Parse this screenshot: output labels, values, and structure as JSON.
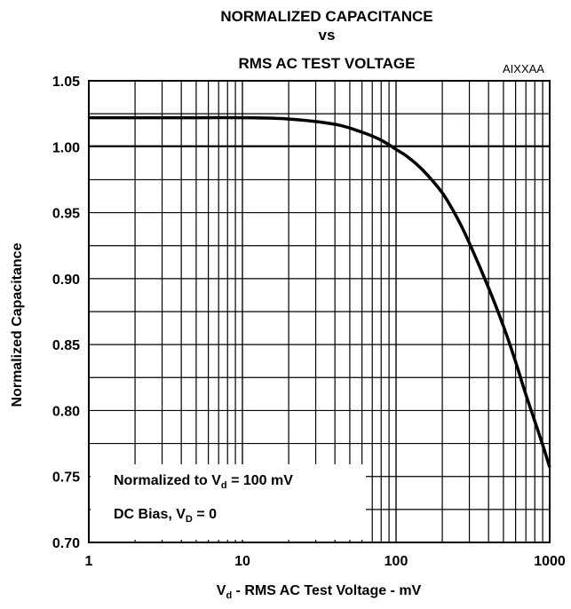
{
  "chart_data": {
    "type": "line",
    "title": [
      "NORMALIZED CAPACITANCE",
      "vs",
      "RMS AC TEST VOLTAGE"
    ],
    "code": "AIXXAA",
    "xlabel": {
      "main": "V",
      "sub": "d",
      "rest": " - RMS AC Test Voltage - mV"
    },
    "ylabel": "Normalized Capacitance",
    "xscale": "log",
    "xlim": [
      1,
      1000
    ],
    "ylim": [
      0.7,
      1.05
    ],
    "grid": true,
    "xticks": [
      1,
      10,
      100,
      1000
    ],
    "xtick_labels": [
      "1",
      "10",
      "100",
      "1000"
    ],
    "yticks": [
      0.7,
      0.75,
      0.8,
      0.85,
      0.9,
      0.95,
      1.0,
      1.05
    ],
    "ytick_labels": [
      "0.70",
      "0.75",
      "0.80",
      "0.85",
      "0.90",
      "0.95",
      "1.00",
      "1.05"
    ],
    "series": [
      {
        "x": [
          1,
          2,
          5,
          10,
          20,
          40,
          60,
          80,
          100,
          120,
          150,
          200,
          250,
          300,
          400,
          500,
          600,
          700,
          800,
          900,
          1000
        ],
        "y": [
          1.022,
          1.022,
          1.022,
          1.022,
          1.021,
          1.017,
          1.011,
          1.005,
          0.998,
          0.992,
          0.982,
          0.965,
          0.946,
          0.927,
          0.893,
          0.864,
          0.837,
          0.812,
          0.792,
          0.774,
          0.757
        ]
      }
    ],
    "annotations": [
      {
        "text": "Normalized to ",
        "var": "V",
        "sub": "d",
        "rest": " = 100 mV"
      },
      {
        "text": "DC Bias, ",
        "var": "V",
        "sub": "D",
        "rest": " = 0"
      }
    ],
    "reference_line": {
      "y": 1.0
    }
  }
}
